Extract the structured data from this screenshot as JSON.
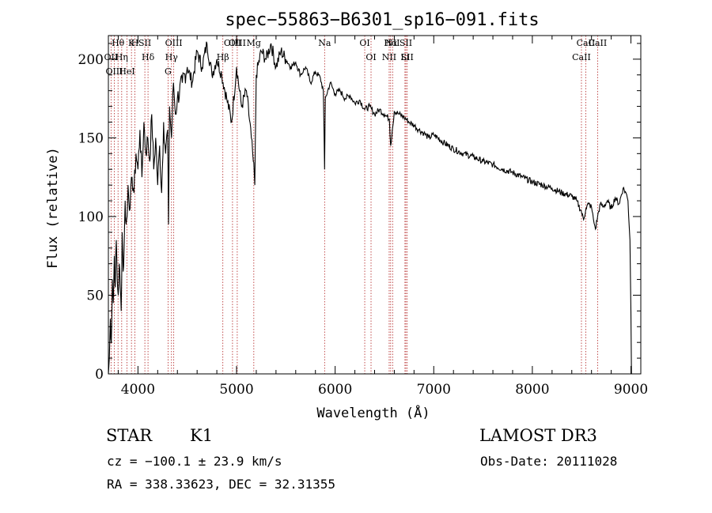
{
  "chart_data": {
    "type": "line",
    "title": "spec−55863−B6301_sp16−091.fits",
    "xlabel": "Wavelength (Å)",
    "ylabel": "Flux (relative)",
    "xlim": [
      3700,
      9100
    ],
    "ylim": [
      0,
      215
    ],
    "x_ticks": [
      4000,
      5000,
      6000,
      7000,
      8000,
      9000
    ],
    "y_ticks": [
      0,
      50,
      100,
      150,
      200
    ],
    "grid": false,
    "series": [
      {
        "name": "spectrum",
        "x": [
          3700,
          3710,
          3720,
          3730,
          3740,
          3750,
          3760,
          3770,
          3780,
          3790,
          3800,
          3810,
          3820,
          3830,
          3840,
          3850,
          3860,
          3870,
          3880,
          3890,
          3900,
          3920,
          3940,
          3960,
          3980,
          4000,
          4020,
          4040,
          4060,
          4080,
          4100,
          4120,
          4140,
          4160,
          4180,
          4200,
          4220,
          4240,
          4260,
          4280,
          4300,
          4310,
          4320,
          4340,
          4360,
          4380,
          4400,
          4450,
          4500,
          4550,
          4600,
          4650,
          4700,
          4750,
          4800,
          4850,
          4900,
          4950,
          5000,
          5050,
          5100,
          5150,
          5170,
          5185,
          5200,
          5250,
          5300,
          5350,
          5400,
          5450,
          5500,
          5550,
          5600,
          5650,
          5700,
          5750,
          5800,
          5850,
          5880,
          5893,
          5900,
          5950,
          6000,
          6050,
          6100,
          6150,
          6200,
          6250,
          6300,
          6350,
          6400,
          6450,
          6500,
          6550,
          6563,
          6580,
          6600,
          6650,
          6700,
          6750,
          6800,
          6850,
          6900,
          6950,
          7000,
          7100,
          7200,
          7300,
          7400,
          7500,
          7600,
          7700,
          7800,
          7900,
          8000,
          8100,
          8200,
          8300,
          8400,
          8450,
          8498,
          8520,
          8542,
          8570,
          8600,
          8620,
          8640,
          8662,
          8690,
          8720,
          8760,
          8800,
          8840,
          8880,
          8920,
          8950,
          8970,
          8990,
          9000,
          9005
        ],
        "y": [
          0,
          10,
          35,
          20,
          60,
          45,
          75,
          55,
          85,
          60,
          50,
          70,
          55,
          40,
          90,
          65,
          80,
          110,
          95,
          100,
          120,
          105,
          125,
          115,
          140,
          130,
          155,
          125,
          160,
          140,
          150,
          135,
          165,
          130,
          150,
          120,
          145,
          115,
          160,
          140,
          155,
          95,
          170,
          150,
          185,
          165,
          175,
          185,
          195,
          185,
          205,
          195,
          210,
          190,
          200,
          190,
          175,
          160,
          195,
          170,
          180,
          150,
          135,
          120,
          190,
          205,
          200,
          210,
          195,
          205,
          200,
          195,
          198,
          190,
          195,
          185,
          192,
          188,
          180,
          130,
          175,
          185,
          178,
          180,
          175,
          177,
          172,
          174,
          168,
          170,
          165,
          168,
          165,
          162,
          145,
          155,
          167,
          165,
          163,
          160,
          158,
          155,
          153,
          150,
          152,
          147,
          143,
          140,
          138,
          135,
          133,
          130,
          128,
          125,
          122,
          120,
          118,
          115,
          113,
          110,
          103,
          98,
          105,
          108,
          106,
          98,
          92,
          100,
          108,
          106,
          110,
          105,
          112,
          108,
          118,
          115,
          110,
          85,
          40,
          0
        ]
      }
    ],
    "lines": [
      {
        "label": "Hθ",
        "x": 3798
      },
      {
        "label": "OII",
        "x": 3727
      },
      {
        "label": "OIII",
        "x": 3760
      },
      {
        "label": "K",
        "x": 3934
      },
      {
        "label": "Hη",
        "x": 3835
      },
      {
        "label": "HeI",
        "x": 3889
      },
      {
        "label": "H",
        "x": 3969
      },
      {
        "label": "SII",
        "x": 4070
      },
      {
        "label": "Hδ",
        "x": 4102
      },
      {
        "label": "OIII",
        "x": 4363
      },
      {
        "label": "Hγ",
        "x": 4340
      },
      {
        "label": "G",
        "x": 4305
      },
      {
        "label": "OIII",
        "x": 5007
      },
      {
        "label": "OIII",
        "x": 4959
      },
      {
        "label": "Hβ",
        "x": 4861
      },
      {
        "label": "Mg",
        "x": 5175
      },
      {
        "label": "Na",
        "x": 5893
      },
      {
        "label": "OI",
        "x": 6300
      },
      {
        "label": "OI",
        "x": 6364
      },
      {
        "label": "Hα",
        "x": 6563
      },
      {
        "label": "NII",
        "x": 6548
      },
      {
        "label": "NII",
        "x": 6583
      },
      {
        "label": "SII",
        "x": 6717
      },
      {
        "label": "Li",
        "x": 6708
      },
      {
        "label": "SII",
        "x": 6731
      },
      {
        "label": "CaII",
        "x": 8542
      },
      {
        "label": "CaII",
        "x": 8498
      },
      {
        "label": "CaII",
        "x": 8662
      }
    ]
  },
  "info": {
    "object_class": "STAR",
    "subclass": "K1",
    "survey": "LAMOST DR3",
    "cz": "cz = −100.1 ± 23.9 km/s",
    "obs_date": "Obs-Date: 20111028",
    "coords": "RA = 338.33623, DEC =  32.31355"
  },
  "colors": {
    "spectrum": "#000000",
    "line_markers": "#b22222",
    "axes": "#000000"
  }
}
